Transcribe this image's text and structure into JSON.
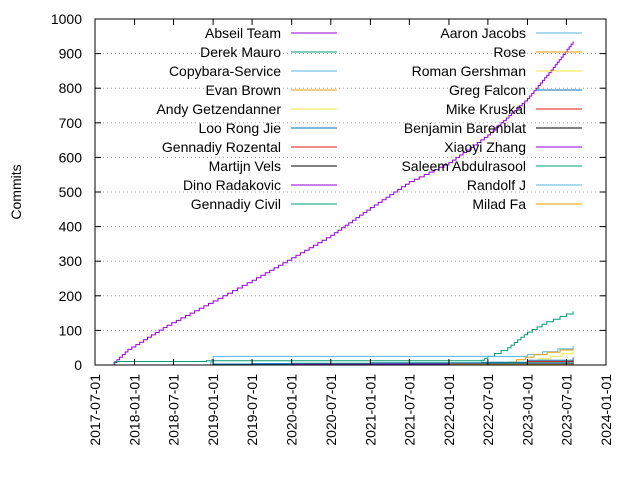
{
  "chart_data": {
    "type": "line",
    "ylabel": "Commits",
    "xlabel": "",
    "ylim": [
      0,
      1000
    ],
    "xlim": [
      "2017-07-01",
      "2024-01-01"
    ],
    "x_ticks": [
      "2017-07-01",
      "2018-01-01",
      "2018-07-01",
      "2019-01-01",
      "2019-07-01",
      "2020-01-01",
      "2020-07-01",
      "2021-01-01",
      "2021-07-01",
      "2022-01-01",
      "2022-07-01",
      "2023-01-01",
      "2023-07-01",
      "2024-01-01"
    ],
    "y_ticks": [
      0,
      100,
      200,
      300,
      400,
      500,
      600,
      700,
      800,
      900,
      1000
    ],
    "grid": "dotted horizontal at y ticks",
    "legend_placement": "top, two columns",
    "series": [
      {
        "name": "Abseil Team",
        "color": "#9400d3",
        "points": [
          [
            "2017-09-15",
            0
          ],
          [
            "2017-12-01",
            45
          ],
          [
            "2018-06-01",
            115
          ],
          [
            "2019-01-01",
            185
          ],
          [
            "2019-07-01",
            245
          ],
          [
            "2020-01-01",
            310
          ],
          [
            "2020-07-01",
            375
          ],
          [
            "2021-01-01",
            455
          ],
          [
            "2021-07-01",
            530
          ],
          [
            "2022-01-01",
            585
          ],
          [
            "2022-07-01",
            665
          ],
          [
            "2023-01-01",
            770
          ],
          [
            "2023-05-01",
            860
          ],
          [
            "2023-08-01",
            935
          ]
        ]
      },
      {
        "name": "Derek Mauro",
        "color": "#009e73",
        "points": [
          [
            "2017-09-15",
            0
          ],
          [
            "2017-10-01",
            10
          ],
          [
            "2018-12-01",
            12
          ],
          [
            "2022-06-01",
            14
          ],
          [
            "2022-07-01",
            25
          ],
          [
            "2022-10-01",
            50
          ],
          [
            "2023-01-01",
            95
          ],
          [
            "2023-04-01",
            125
          ],
          [
            "2023-08-01",
            155
          ]
        ]
      },
      {
        "name": "Copybara-Service",
        "color": "#56b4e9",
        "points": [
          [
            "2017-09-15",
            0
          ],
          [
            "2018-12-15",
            0
          ],
          [
            "2019-01-01",
            25
          ],
          [
            "2022-06-15",
            25
          ],
          [
            "2023-01-01",
            30
          ],
          [
            "2023-08-01",
            55
          ]
        ]
      },
      {
        "name": "Evan Brown",
        "color": "#e69f00",
        "points": [
          [
            "2022-01-01",
            0
          ],
          [
            "2022-10-01",
            8
          ],
          [
            "2023-02-01",
            30
          ],
          [
            "2023-08-01",
            50
          ]
        ]
      },
      {
        "name": "Andy Getzendanner",
        "color": "#f0e442",
        "points": [
          [
            "2022-06-01",
            0
          ],
          [
            "2023-01-01",
            10
          ],
          [
            "2023-08-01",
            40
          ]
        ]
      },
      {
        "name": "Loo Rong Jie",
        "color": "#0072b2",
        "points": [
          [
            "2019-01-01",
            0
          ],
          [
            "2019-07-01",
            4
          ],
          [
            "2021-01-01",
            6
          ],
          [
            "2022-06-01",
            8
          ],
          [
            "2023-01-01",
            14
          ],
          [
            "2023-08-01",
            22
          ]
        ]
      },
      {
        "name": "Gennadiy Rozental",
        "color": "#e51e10",
        "points": [
          [
            "2019-06-01",
            0
          ],
          [
            "2020-01-01",
            2
          ],
          [
            "2022-01-01",
            5
          ],
          [
            "2023-01-01",
            10
          ],
          [
            "2023-08-01",
            14
          ]
        ]
      },
      {
        "name": "Martijn Vels",
        "color": "#000000",
        "points": [
          [
            "2022-06-01",
            0
          ],
          [
            "2023-01-01",
            6
          ],
          [
            "2023-08-01",
            12
          ]
        ]
      },
      {
        "name": "Dino Radakovic",
        "color": "#9400d3",
        "points": [
          [
            "2022-07-01",
            0
          ],
          [
            "2023-01-01",
            4
          ],
          [
            "2023-08-01",
            10
          ]
        ]
      },
      {
        "name": "Gennadiy Civil",
        "color": "#009e73",
        "points": [
          [
            "2018-06-01",
            0
          ],
          [
            "2019-01-01",
            3
          ],
          [
            "2020-01-01",
            5
          ],
          [
            "2021-01-01",
            6
          ],
          [
            "2023-08-01",
            8
          ]
        ]
      },
      {
        "name": "Aaron Jacobs",
        "color": "#56b4e9",
        "points": [
          [
            "2022-06-01",
            0
          ],
          [
            "2023-01-01",
            5
          ],
          [
            "2023-08-01",
            9
          ]
        ]
      },
      {
        "name": "Rose",
        "color": "#e69f00",
        "points": [
          [
            "2023-01-01",
            0
          ],
          [
            "2023-08-01",
            8
          ]
        ]
      },
      {
        "name": "Roman Gershman",
        "color": "#f0e442",
        "points": [
          [
            "2022-10-01",
            0
          ],
          [
            "2023-08-01",
            7
          ]
        ]
      },
      {
        "name": "Greg Falcon",
        "color": "#0072b2",
        "points": [
          [
            "2017-10-01",
            0
          ],
          [
            "2019-01-01",
            3
          ],
          [
            "2021-01-01",
            5
          ],
          [
            "2023-08-01",
            7
          ]
        ]
      },
      {
        "name": "Mike Kruskal",
        "color": "#e51e10",
        "points": [
          [
            "2022-09-01",
            0
          ],
          [
            "2023-08-01",
            6
          ]
        ]
      },
      {
        "name": "Benjamin Barenblat",
        "color": "#000000",
        "points": [
          [
            "2020-07-01",
            0
          ],
          [
            "2021-07-01",
            2
          ],
          [
            "2022-07-01",
            3
          ],
          [
            "2023-08-01",
            5
          ]
        ]
      },
      {
        "name": "Xiaoyi Zhang",
        "color": "#9400d3",
        "points": [
          [
            "2018-01-01",
            0
          ],
          [
            "2020-01-01",
            2
          ],
          [
            "2022-01-01",
            3
          ],
          [
            "2023-08-01",
            5
          ]
        ]
      },
      {
        "name": "Saleem Abdulrasool",
        "color": "#009e73",
        "points": [
          [
            "2021-06-01",
            0
          ],
          [
            "2022-06-01",
            2
          ],
          [
            "2023-08-01",
            4
          ]
        ]
      },
      {
        "name": "Randolf J",
        "color": "#56b4e9",
        "points": [
          [
            "2023-02-01",
            0
          ],
          [
            "2023-08-01",
            4
          ]
        ]
      },
      {
        "name": "Milad Fa",
        "color": "#e69f00",
        "points": [
          [
            "2021-01-01",
            0
          ],
          [
            "2022-01-01",
            2
          ],
          [
            "2023-08-01",
            3
          ]
        ]
      }
    ]
  }
}
